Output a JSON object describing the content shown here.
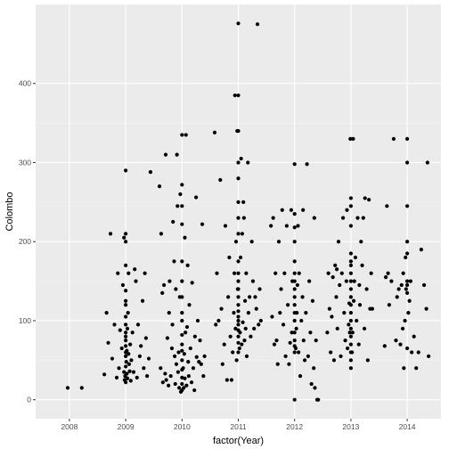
{
  "chart_data": {
    "type": "scatter",
    "title": "",
    "xlabel": "factor(Year)",
    "ylabel": "Colombo",
    "categories": [
      "2008",
      "2009",
      "2010",
      "2011",
      "2012",
      "2013",
      "2014"
    ],
    "yticks": [
      0,
      100,
      200,
      300,
      400
    ],
    "ylim": [
      -24,
      500
    ],
    "xlim": [
      0.4,
      7.6
    ],
    "grid": true,
    "legend": "none",
    "colors": {
      "panel": "#ebebeb",
      "grid_major": "#ffffff",
      "grid_minor": "#f2f2f2",
      "point": "#000000"
    },
    "points": [
      [
        0.97,
        15
      ],
      [
        1.22,
        15
      ],
      [
        1.62,
        32
      ],
      [
        1.66,
        110
      ],
      [
        1.69,
        72
      ],
      [
        1.73,
        210
      ],
      [
        1.76,
        52
      ],
      [
        1.8,
        95
      ],
      [
        1.84,
        28
      ],
      [
        1.86,
        160
      ],
      [
        1.88,
        40
      ],
      [
        1.9,
        88
      ],
      [
        1.93,
        65
      ],
      [
        1.95,
        145
      ],
      [
        1.97,
        205
      ],
      [
        1.97,
        35
      ],
      [
        1.98,
        25
      ],
      [
        1.99,
        30
      ],
      [
        2.0,
        22
      ],
      [
        2.0,
        42
      ],
      [
        2.0,
        55
      ],
      [
        2.0,
        60
      ],
      [
        2.0,
        68
      ],
      [
        2.0,
        75
      ],
      [
        2.0,
        80
      ],
      [
        2.0,
        85
      ],
      [
        2.0,
        95
      ],
      [
        2.0,
        105
      ],
      [
        2.0,
        120
      ],
      [
        2.0,
        125
      ],
      [
        2.0,
        138
      ],
      [
        2.0,
        170
      ],
      [
        2.0,
        200
      ],
      [
        2.0,
        210
      ],
      [
        2.0,
        290
      ],
      [
        2.01,
        48
      ],
      [
        2.02,
        33
      ],
      [
        2.02,
        62
      ],
      [
        2.03,
        27
      ],
      [
        2.03,
        90
      ],
      [
        2.04,
        110
      ],
      [
        2.05,
        58
      ],
      [
        2.05,
        160
      ],
      [
        2.06,
        45
      ],
      [
        2.07,
        36
      ],
      [
        2.08,
        70
      ],
      [
        2.09,
        24
      ],
      [
        2.1,
        50
      ],
      [
        2.12,
        85
      ],
      [
        2.14,
        35
      ],
      [
        2.16,
        165
      ],
      [
        2.18,
        150
      ],
      [
        2.2,
        28
      ],
      [
        2.22,
        95
      ],
      [
        2.25,
        55
      ],
      [
        2.27,
        68
      ],
      [
        2.3,
        125
      ],
      [
        2.32,
        40
      ],
      [
        2.34,
        160
      ],
      [
        2.36,
        78
      ],
      [
        2.38,
        30
      ],
      [
        2.41,
        52
      ],
      [
        2.44,
        288
      ],
      [
        2.6,
        270
      ],
      [
        2.62,
        40
      ],
      [
        2.63,
        210
      ],
      [
        2.65,
        135
      ],
      [
        2.66,
        22
      ],
      [
        2.68,
        145
      ],
      [
        2.7,
        33
      ],
      [
        2.71,
        310
      ],
      [
        2.72,
        25
      ],
      [
        2.74,
        78
      ],
      [
        2.76,
        18
      ],
      [
        2.77,
        110
      ],
      [
        2.78,
        150
      ],
      [
        2.8,
        30
      ],
      [
        2.82,
        65
      ],
      [
        2.83,
        95
      ],
      [
        2.84,
        225
      ],
      [
        2.86,
        175
      ],
      [
        2.87,
        55
      ],
      [
        2.88,
        20
      ],
      [
        2.89,
        140
      ],
      [
        2.9,
        45
      ],
      [
        2.91,
        310
      ],
      [
        2.92,
        245
      ],
      [
        2.93,
        35
      ],
      [
        2.94,
        60
      ],
      [
        2.95,
        15
      ],
      [
        2.96,
        130
      ],
      [
        2.97,
        260
      ],
      [
        2.98,
        10
      ],
      [
        3.0,
        12
      ],
      [
        3.0,
        20
      ],
      [
        3.0,
        28
      ],
      [
        3.0,
        38
      ],
      [
        3.0,
        50
      ],
      [
        3.0,
        62
      ],
      [
        3.0,
        70
      ],
      [
        3.0,
        82
      ],
      [
        3.0,
        100
      ],
      [
        3.0,
        110
      ],
      [
        3.0,
        130
      ],
      [
        3.0,
        150
      ],
      [
        3.0,
        175
      ],
      [
        3.0,
        222
      ],
      [
        3.0,
        245
      ],
      [
        3.0,
        272
      ],
      [
        3.0,
        335
      ],
      [
        3.02,
        40
      ],
      [
        3.03,
        15
      ],
      [
        3.04,
        58
      ],
      [
        3.05,
        27
      ],
      [
        3.05,
        205
      ],
      [
        3.06,
        85
      ],
      [
        3.07,
        335
      ],
      [
        3.08,
        18
      ],
      [
        3.09,
        92
      ],
      [
        3.1,
        170
      ],
      [
        3.11,
        48
      ],
      [
        3.12,
        30
      ],
      [
        3.13,
        120
      ],
      [
        3.15,
        65
      ],
      [
        3.17,
        22
      ],
      [
        3.18,
        148
      ],
      [
        3.2,
        40
      ],
      [
        3.22,
        12
      ],
      [
        3.23,
        80
      ],
      [
        3.25,
        256
      ],
      [
        3.26,
        54
      ],
      [
        3.28,
        100
      ],
      [
        3.3,
        48
      ],
      [
        3.32,
        75
      ],
      [
        3.34,
        45
      ],
      [
        3.36,
        222
      ],
      [
        3.38,
        30
      ],
      [
        3.4,
        55
      ],
      [
        3.58,
        338
      ],
      [
        3.6,
        95
      ],
      [
        3.62,
        160
      ],
      [
        3.65,
        100
      ],
      [
        3.68,
        278
      ],
      [
        3.7,
        115
      ],
      [
        3.72,
        45
      ],
      [
        3.75,
        70
      ],
      [
        3.77,
        220
      ],
      [
        3.8,
        25
      ],
      [
        3.82,
        130
      ],
      [
        3.84,
        180
      ],
      [
        3.86,
        80
      ],
      [
        3.88,
        25
      ],
      [
        3.9,
        60
      ],
      [
        3.92,
        110
      ],
      [
        3.93,
        160
      ],
      [
        3.94,
        385
      ],
      [
        3.95,
        90
      ],
      [
        3.96,
        200
      ],
      [
        3.97,
        50
      ],
      [
        3.98,
        340
      ],
      [
        3.99,
        140
      ],
      [
        4.0,
        60
      ],
      [
        4.0,
        72
      ],
      [
        4.0,
        80
      ],
      [
        4.0,
        88
      ],
      [
        4.0,
        95
      ],
      [
        4.0,
        100
      ],
      [
        4.0,
        105
      ],
      [
        4.0,
        112
      ],
      [
        4.0,
        120
      ],
      [
        4.0,
        130
      ],
      [
        4.0,
        140
      ],
      [
        4.0,
        150
      ],
      [
        4.0,
        160
      ],
      [
        4.0,
        175
      ],
      [
        4.0,
        210
      ],
      [
        4.0,
        230
      ],
      [
        4.0,
        250
      ],
      [
        4.0,
        280
      ],
      [
        4.0,
        300
      ],
      [
        4.0,
        340
      ],
      [
        4.0,
        385
      ],
      [
        4.0,
        476
      ],
      [
        4.02,
        65
      ],
      [
        4.03,
        85
      ],
      [
        4.04,
        180
      ],
      [
        4.05,
        305
      ],
      [
        4.06,
        70
      ],
      [
        4.07,
        210
      ],
      [
        4.08,
        98
      ],
      [
        4.09,
        250
      ],
      [
        4.1,
        230
      ],
      [
        4.11,
        75
      ],
      [
        4.12,
        125
      ],
      [
        4.13,
        90
      ],
      [
        4.14,
        160
      ],
      [
        4.15,
        55
      ],
      [
        4.17,
        300
      ],
      [
        4.18,
        110
      ],
      [
        4.2,
        130
      ],
      [
        4.22,
        80
      ],
      [
        4.24,
        200
      ],
      [
        4.26,
        150
      ],
      [
        4.28,
        90
      ],
      [
        4.3,
        130
      ],
      [
        4.32,
        115
      ],
      [
        4.34,
        475
      ],
      [
        4.36,
        95
      ],
      [
        4.38,
        140
      ],
      [
        4.4,
        100
      ],
      [
        4.58,
        220
      ],
      [
        4.6,
        105
      ],
      [
        4.62,
        230
      ],
      [
        4.64,
        70
      ],
      [
        4.66,
        160
      ],
      [
        4.68,
        75
      ],
      [
        4.7,
        45
      ],
      [
        4.72,
        200
      ],
      [
        4.74,
        110
      ],
      [
        4.76,
        140
      ],
      [
        4.78,
        240
      ],
      [
        4.8,
        95
      ],
      [
        4.82,
        160
      ],
      [
        4.84,
        55
      ],
      [
        4.86,
        220
      ],
      [
        4.88,
        120
      ],
      [
        4.9,
        45
      ],
      [
        4.92,
        72
      ],
      [
        4.94,
        240
      ],
      [
        4.95,
        85
      ],
      [
        4.96,
        150
      ],
      [
        5.0,
        0
      ],
      [
        5.0,
        60
      ],
      [
        5.0,
        68
      ],
      [
        5.0,
        75
      ],
      [
        5.0,
        85
      ],
      [
        5.0,
        100
      ],
      [
        5.0,
        110
      ],
      [
        5.0,
        120
      ],
      [
        5.0,
        130
      ],
      [
        5.0,
        140
      ],
      [
        5.0,
        150
      ],
      [
        5.0,
        160
      ],
      [
        5.0,
        175
      ],
      [
        5.0,
        200
      ],
      [
        5.0,
        218
      ],
      [
        5.0,
        235
      ],
      [
        5.0,
        298
      ],
      [
        5.02,
        65
      ],
      [
        5.03,
        90
      ],
      [
        5.04,
        110
      ],
      [
        5.05,
        145
      ],
      [
        5.06,
        220
      ],
      [
        5.07,
        60
      ],
      [
        5.08,
        160
      ],
      [
        5.1,
        30
      ],
      [
        5.12,
        100
      ],
      [
        5.14,
        130
      ],
      [
        5.15,
        240
      ],
      [
        5.16,
        75
      ],
      [
        5.18,
        50
      ],
      [
        5.2,
        110
      ],
      [
        5.22,
        298
      ],
      [
        5.24,
        55
      ],
      [
        5.26,
        150
      ],
      [
        5.28,
        85
      ],
      [
        5.3,
        20
      ],
      [
        5.32,
        125
      ],
      [
        5.34,
        40
      ],
      [
        5.35,
        230
      ],
      [
        5.36,
        15
      ],
      [
        5.38,
        75
      ],
      [
        5.4,
        0
      ],
      [
        5.42,
        0
      ],
      [
        5.58,
        85
      ],
      [
        5.6,
        160
      ],
      [
        5.62,
        115
      ],
      [
        5.64,
        60
      ],
      [
        5.66,
        105
      ],
      [
        5.68,
        155
      ],
      [
        5.7,
        50
      ],
      [
        5.72,
        170
      ],
      [
        5.74,
        130
      ],
      [
        5.75,
        165
      ],
      [
        5.76,
        90
      ],
      [
        5.78,
        200
      ],
      [
        5.8,
        145
      ],
      [
        5.82,
        55
      ],
      [
        5.84,
        160
      ],
      [
        5.86,
        230
      ],
      [
        5.88,
        110
      ],
      [
        5.9,
        75
      ],
      [
        5.92,
        150
      ],
      [
        5.93,
        240
      ],
      [
        5.94,
        65
      ],
      [
        5.96,
        95
      ],
      [
        5.97,
        122
      ],
      [
        5.98,
        85
      ],
      [
        5.99,
        330
      ],
      [
        6.0,
        40
      ],
      [
        6.0,
        50
      ],
      [
        6.0,
        60
      ],
      [
        6.0,
        70
      ],
      [
        6.0,
        80
      ],
      [
        6.0,
        90
      ],
      [
        6.0,
        100
      ],
      [
        6.0,
        110
      ],
      [
        6.0,
        120
      ],
      [
        6.0,
        130
      ],
      [
        6.0,
        140
      ],
      [
        6.0,
        150
      ],
      [
        6.0,
        160
      ],
      [
        6.0,
        170
      ],
      [
        6.0,
        175
      ],
      [
        6.0,
        185
      ],
      [
        6.0,
        220
      ],
      [
        6.0,
        245
      ],
      [
        6.0,
        255
      ],
      [
        6.02,
        60
      ],
      [
        6.03,
        85
      ],
      [
        6.04,
        330
      ],
      [
        6.05,
        125
      ],
      [
        6.06,
        150
      ],
      [
        6.08,
        180
      ],
      [
        6.1,
        100
      ],
      [
        6.12,
        230
      ],
      [
        6.14,
        70
      ],
      [
        6.15,
        145
      ],
      [
        6.16,
        120
      ],
      [
        6.18,
        200
      ],
      [
        6.2,
        170
      ],
      [
        6.22,
        230
      ],
      [
        6.24,
        90
      ],
      [
        6.25,
        255
      ],
      [
        6.28,
        140
      ],
      [
        6.3,
        50
      ],
      [
        6.32,
        253
      ],
      [
        6.34,
        115
      ],
      [
        6.36,
        160
      ],
      [
        6.38,
        115
      ],
      [
        6.6,
        68
      ],
      [
        6.62,
        155
      ],
      [
        6.64,
        245
      ],
      [
        6.66,
        160
      ],
      [
        6.68,
        120
      ],
      [
        6.72,
        150
      ],
      [
        6.76,
        330
      ],
      [
        6.8,
        75
      ],
      [
        6.82,
        130
      ],
      [
        6.85,
        140
      ],
      [
        6.88,
        70
      ],
      [
        6.9,
        145
      ],
      [
        6.92,
        90
      ],
      [
        6.93,
        160
      ],
      [
        6.94,
        40
      ],
      [
        6.96,
        100
      ],
      [
        6.97,
        180
      ],
      [
        6.98,
        140
      ],
      [
        7.0,
        65
      ],
      [
        7.0,
        135
      ],
      [
        7.0,
        145
      ],
      [
        7.0,
        150
      ],
      [
        7.0,
        185
      ],
      [
        7.0,
        200
      ],
      [
        7.0,
        245
      ],
      [
        7.0,
        300
      ],
      [
        7.0,
        330
      ],
      [
        7.02,
        110
      ],
      [
        7.04,
        125
      ],
      [
        7.06,
        150
      ],
      [
        7.08,
        60
      ],
      [
        7.12,
        80
      ],
      [
        7.16,
        40
      ],
      [
        7.2,
        60
      ],
      [
        7.25,
        190
      ],
      [
        7.3,
        145
      ],
      [
        7.34,
        115
      ],
      [
        7.36,
        300
      ],
      [
        7.38,
        55
      ]
    ]
  }
}
